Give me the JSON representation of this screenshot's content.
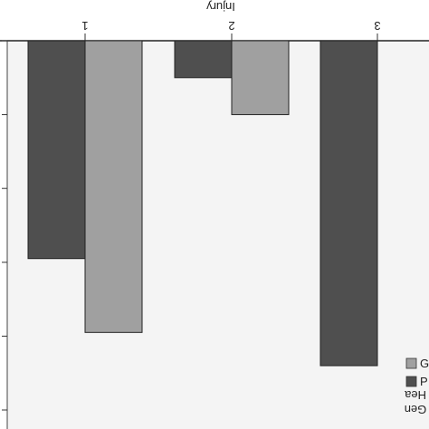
{
  "chart_data": {
    "type": "bar",
    "orientation": "downward-from-top-axis",
    "xlabel": "Injury",
    "categories": [
      "1",
      "2",
      "3"
    ],
    "series": [
      {
        "color": "#4f4f4f",
        "values": [
          -2.95,
          -0.5,
          -4.4
        ]
      },
      {
        "color": "#a0a0a0",
        "values": [
          -3.95,
          -1.0,
          null
        ]
      }
    ],
    "ylim": [
      -5,
      0
    ],
    "grid": false,
    "legend": {
      "placement": "bottom-right",
      "entries": [
        {
          "label": "G",
          "color": "#a0a0a0"
        },
        {
          "label": "P",
          "color": "#4f4f4f"
        }
      ],
      "title_lines": [
        "Hea",
        "Gen"
      ]
    }
  }
}
